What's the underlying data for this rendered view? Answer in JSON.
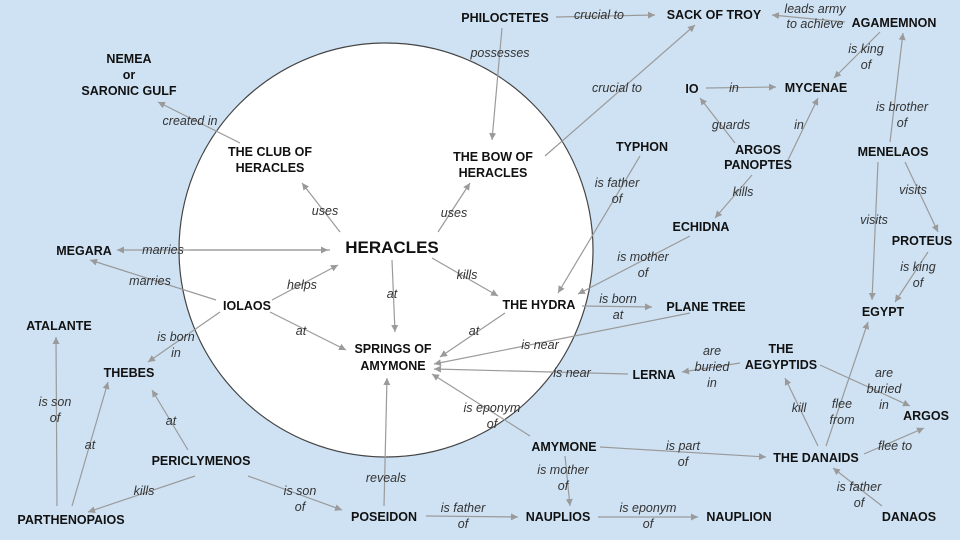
{
  "nodes": {
    "heracles": "HERACLES",
    "club": [
      "THE CLUB OF",
      "HERACLES"
    ],
    "bow": [
      "THE BOW OF",
      "HERACLES"
    ],
    "nemea": [
      "NEMEA",
      "or",
      "SARONIC GULF"
    ],
    "megara": "MEGARA",
    "iolaos": "IOLAOS",
    "hydra": "THE HYDRA",
    "springs": [
      "SPRINGS OF",
      "AMYMONE"
    ],
    "atalante": "ATALANTE",
    "thebes": "THEBES",
    "periclymenos": "PERICLYMENOS",
    "parthenopaios": "PARTHENOPAIOS",
    "poseidon": "POSEIDON",
    "nauplios": "NAUPLIOS",
    "nauplion": "NAUPLION",
    "amymone": "AMYMONE",
    "danaids": "THE DANAIDS",
    "danaos": "DANAOS",
    "argos_city": "ARGOS",
    "aegyptids": [
      "THE",
      "AEGYPTIDS"
    ],
    "lerna": "LERNA",
    "plane_tree": "PLANE TREE",
    "egypt": "EGYPT",
    "proteus": "PROTEUS",
    "menelaos": "MENELAOS",
    "agamemnon": "AGAMEMNON",
    "sack_of_troy": "SACK OF TROY",
    "philoctetes": "PHILOCTETES",
    "io": "IO",
    "mycenae": "MYCENAE",
    "argos_panoptes": [
      "ARGOS",
      "PANOPTES"
    ],
    "typhon": "TYPHON",
    "echidna": "ECHIDNA"
  },
  "edges": [
    {
      "id": "club_nemea",
      "label": [
        "created in"
      ]
    },
    {
      "id": "heracles_club",
      "label": [
        "uses"
      ]
    },
    {
      "id": "heracles_bow",
      "label": [
        "uses"
      ]
    },
    {
      "id": "heracles_megara",
      "label": [
        "marries"
      ]
    },
    {
      "id": "iolaos_megara",
      "label": [
        "marries"
      ]
    },
    {
      "id": "iolaos_heracles",
      "label": [
        "helps"
      ]
    },
    {
      "id": "heracles_springs",
      "label": [
        "at"
      ]
    },
    {
      "id": "iolaos_springs",
      "label": [
        "at"
      ]
    },
    {
      "id": "heracles_hydra",
      "label": [
        "kills"
      ]
    },
    {
      "id": "hydra_springs",
      "label": [
        "at"
      ]
    },
    {
      "id": "iolaos_thebes",
      "label": [
        "is born",
        "in"
      ]
    },
    {
      "id": "parthenopaios_atalante",
      "label": [
        "is son",
        "of"
      ]
    },
    {
      "id": "parthenopaios_thebes",
      "label": [
        "at"
      ]
    },
    {
      "id": "periclymenos_thebes",
      "label": [
        "at"
      ]
    },
    {
      "id": "periclymenos_parthenopaios",
      "label": [
        "kills"
      ]
    },
    {
      "id": "periclymenos_poseidon",
      "label": [
        "is son",
        "of"
      ]
    },
    {
      "id": "poseidon_springs",
      "label": [
        "reveals"
      ]
    },
    {
      "id": "poseidon_nauplios",
      "label": [
        "is father",
        "of"
      ]
    },
    {
      "id": "nauplios_nauplion",
      "label": [
        "is eponym",
        "of"
      ]
    },
    {
      "id": "amymone_nauplios",
      "label": [
        "is mother",
        "of"
      ]
    },
    {
      "id": "amymone_springs",
      "label": [
        "is eponym",
        "of"
      ]
    },
    {
      "id": "amymone_danaids",
      "label": [
        "is part",
        "of"
      ]
    },
    {
      "id": "danaos_danaids",
      "label": [
        "is father",
        "of"
      ]
    },
    {
      "id": "danaids_argos",
      "label": [
        "flee to"
      ]
    },
    {
      "id": "danaids_aegyptids",
      "label": [
        "kill"
      ]
    },
    {
      "id": "danaids_egypt",
      "label": [
        "flee",
        "from"
      ]
    },
    {
      "id": "aegyptids_argos",
      "label": [
        "are",
        "buried",
        "in"
      ]
    },
    {
      "id": "aegyptids_lerna",
      "label": [
        "are",
        "buried",
        "in"
      ]
    },
    {
      "id": "lerna_springs",
      "label": [
        "is near"
      ]
    },
    {
      "id": "plane_springs",
      "label": [
        "is near"
      ]
    },
    {
      "id": "hydra_plane",
      "label": [
        "is born",
        "at"
      ]
    },
    {
      "id": "typhon_hydra",
      "label": [
        "is father",
        "of"
      ]
    },
    {
      "id": "echidna_hydra",
      "label": [
        "is mother",
        "of"
      ]
    },
    {
      "id": "panoptes_echidna",
      "label": [
        "kills"
      ]
    },
    {
      "id": "panoptes_io",
      "label": [
        "guards"
      ]
    },
    {
      "id": "panoptes_mycenae",
      "label": [
        "in"
      ]
    },
    {
      "id": "io_mycenae",
      "label": [
        "in"
      ]
    },
    {
      "id": "bow_sack",
      "label": [
        "crucial to"
      ]
    },
    {
      "id": "philoctetes_sack",
      "label": [
        "crucial to"
      ]
    },
    {
      "id": "philoctetes_bow",
      "label": [
        "possesses"
      ]
    },
    {
      "id": "agamemnon_sack",
      "label": [
        "leads army",
        "to achieve"
      ]
    },
    {
      "id": "agamemnon_mycenae",
      "label": [
        "is king",
        "of"
      ]
    },
    {
      "id": "menelaos_agamemnon",
      "label": [
        "is brother",
        "of"
      ]
    },
    {
      "id": "menelaos_proteus",
      "label": [
        "visits"
      ]
    },
    {
      "id": "menelaos_egypt",
      "label": [
        "visits"
      ]
    },
    {
      "id": "proteus_egypt",
      "label": [
        "is king",
        "of"
      ]
    }
  ]
}
